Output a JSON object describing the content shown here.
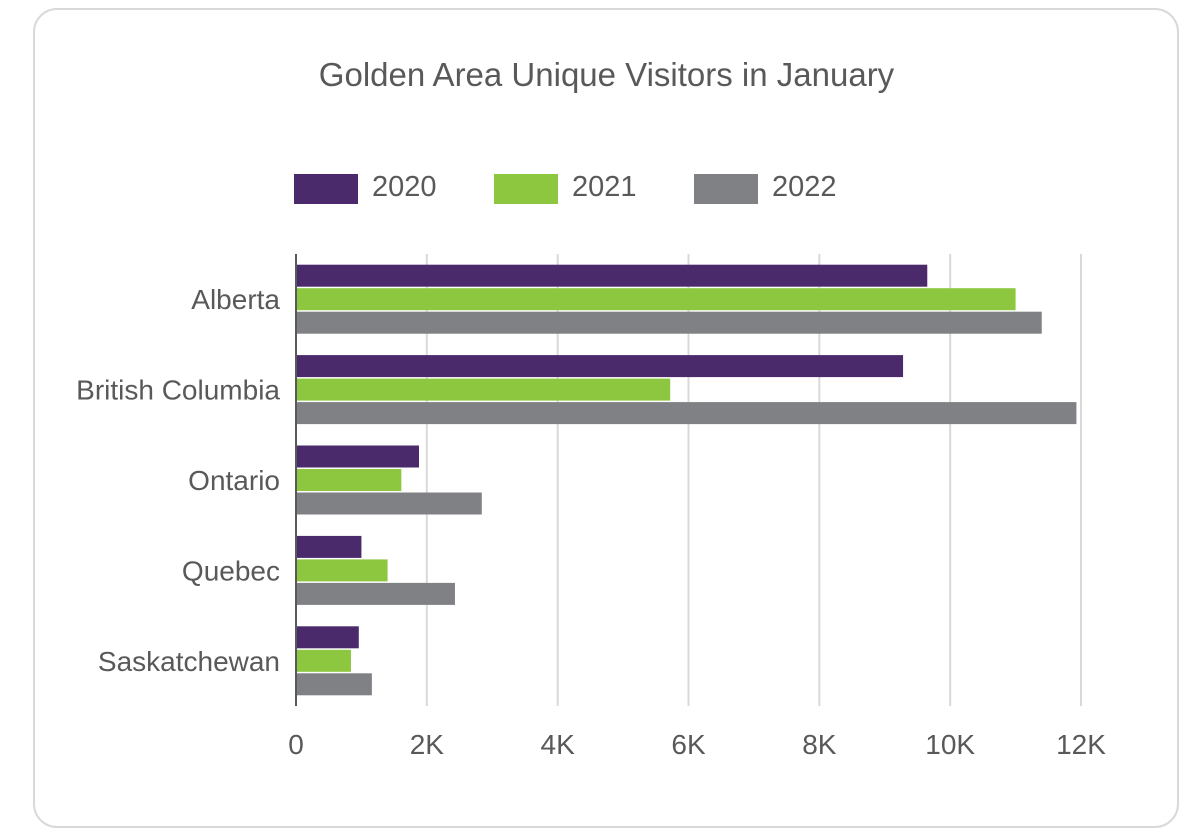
{
  "chart_data": {
    "type": "bar",
    "orientation": "horizontal",
    "title": "Golden Area Unique Visitors in January",
    "categories": [
      "Alberta",
      "British Columbia",
      "Ontario",
      "Quebec",
      "Saskatchewan"
    ],
    "series": [
      {
        "name": "2020",
        "color": "#4a2a6a",
        "values": [
          9650,
          9280,
          1880,
          1000,
          960
        ]
      },
      {
        "name": "2021",
        "color": "#8dc63f",
        "values": [
          11000,
          5720,
          1610,
          1400,
          840
        ]
      },
      {
        "name": "2022",
        "color": "#808184",
        "values": [
          11400,
          11930,
          2840,
          2430,
          1160
        ]
      }
    ],
    "xticks": [
      "0",
      "2K",
      "4K",
      "6K",
      "8K",
      "10K",
      "12K"
    ],
    "xlim": [
      0,
      12000
    ],
    "grid": true,
    "legend_position": "top"
  }
}
